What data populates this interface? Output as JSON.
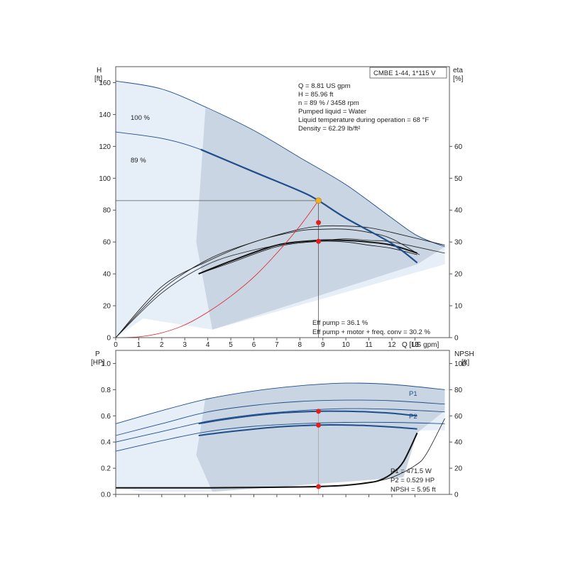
{
  "colors": {
    "band_dark": "#c9d5e2",
    "band_light": "#e6eef8",
    "curve": "#1f4e8c",
    "marker": "#e02020",
    "op_point": "#f0b020",
    "system_curve": "#e02020"
  },
  "chart_data": [
    {
      "type": "line",
      "panel": "head-efficiency",
      "title": "CMBE 1-44, 1*115 V",
      "y_axis_label": "H",
      "y_axis_unit": "[ft]",
      "y2_axis_label": "eta",
      "y2_axis_unit": "[%]",
      "x_axis_unit": "Q [US gpm]",
      "xlim": [
        0,
        14.5
      ],
      "ylim": [
        0,
        170
      ],
      "y2lim": [
        0,
        85
      ],
      "x_ticks": [
        "0",
        "1",
        "2",
        "3",
        "4",
        "5",
        "6",
        "7",
        "8",
        "9",
        "10",
        "11",
        "12",
        "13"
      ],
      "y_ticks": [
        "0",
        "20",
        "40",
        "60",
        "80",
        "100",
        "120",
        "140",
        "160"
      ],
      "y2_ticks": [
        "0",
        "10",
        "20",
        "30",
        "40",
        "50",
        "60"
      ],
      "info_lines": [
        "Q = 8.81 US gpm",
        "H = 85.96 ft",
        "n = 89 % / 3458 rpm",
        "Pumped liquid = Water",
        "Liquid temperature during operation = 68 °F",
        "Density = 62.29 lb/ft²"
      ],
      "eff_lines": [
        "Eff pump = 36.1 %",
        "Eff pump + motor + freq. conv = 30.2 %"
      ],
      "speed_labels": [
        "100 %",
        "89 %"
      ],
      "series": [
        {
          "name": "100 %",
          "axis": "H",
          "x": [
            0,
            2,
            4,
            6,
            8,
            10,
            12,
            13.1,
            14.3
          ],
          "values": [
            161,
            156,
            144,
            130,
            113,
            96,
            75,
            64,
            57
          ]
        },
        {
          "name": "89 %",
          "axis": "H",
          "x": [
            0,
            2,
            3.7,
            6,
            8,
            8.81,
            10,
            12,
            13.1
          ],
          "values": [
            129,
            125,
            118,
            104,
            92,
            85.96,
            75,
            59,
            47
          ]
        },
        {
          "axis": "eta",
          "x": [
            0,
            2,
            4,
            6,
            8,
            9,
            10,
            11,
            12,
            13.2
          ],
          "values": [
            0,
            16,
            24,
            30,
            33.5,
            34,
            34,
            33,
            31,
            26
          ]
        },
        {
          "axis": "eta",
          "x": [
            0,
            2,
            4,
            6,
            8,
            9,
            10,
            11,
            12,
            14.3
          ],
          "values": [
            0,
            15,
            24.5,
            30,
            34,
            35,
            35,
            34.5,
            33,
            29
          ]
        },
        {
          "axis": "eta",
          "x": [
            3.6,
            5,
            7,
            8.81,
            10,
            11,
            12,
            13.1
          ],
          "values": [
            20,
            23.5,
            28.5,
            30.2,
            30,
            29,
            28,
            26
          ]
        },
        {
          "axis": "eta",
          "x": [
            3.6,
            5,
            7,
            8.81,
            10,
            11,
            12,
            13.1
          ],
          "values": [
            20,
            24,
            29,
            30.5,
            30.5,
            30,
            29,
            26.5
          ]
        },
        {
          "axis": "eta",
          "x": [
            0,
            2,
            4,
            6,
            8,
            9,
            10,
            11,
            12,
            14.3
          ],
          "values": [
            0,
            14,
            23,
            27.5,
            30,
            30.5,
            31,
            30.5,
            30,
            26.5
          ]
        },
        {
          "name": "system",
          "axis": "H",
          "x": [
            0,
            1,
            2,
            3,
            4,
            5,
            6,
            7,
            8,
            8.81
          ],
          "values": [
            0,
            0.5,
            3,
            8,
            16,
            26,
            38,
            53,
            70,
            85.96
          ]
        }
      ],
      "operating_point": {
        "x": 8.81,
        "y": 85.96
      },
      "markers": [
        {
          "x": 8.81,
          "y": 72.2
        },
        {
          "x": 8.81,
          "y": 60.4
        }
      ]
    },
    {
      "type": "line",
      "panel": "power-npsh",
      "y_axis_label": "P",
      "y_axis_unit": "[HP]",
      "y2_axis_label": "NPSH",
      "y2_axis_unit": "[ft]",
      "xlim": [
        0,
        14.5
      ],
      "ylim": [
        0,
        1.1
      ],
      "y2lim": [
        0,
        110
      ],
      "y_ticks": [
        "0.0",
        "0.2",
        "0.4",
        "0.6",
        "0.8",
        "1.0"
      ],
      "y2_ticks": [
        "0",
        "20",
        "40",
        "60",
        "80",
        "100"
      ],
      "series_labels": [
        "P1",
        "P2"
      ],
      "readout_lines": [
        "P1 = 471.5 W",
        "P2 = 0.529 HP",
        "NPSH = 5.95 ft"
      ],
      "series": [
        {
          "name": "P1",
          "x": [
            0,
            2,
            4,
            6,
            8,
            10,
            12,
            14.3
          ],
          "values": [
            0.54,
            0.64,
            0.73,
            0.79,
            0.83,
            0.85,
            0.84,
            0.8
          ]
        },
        {
          "x": [
            0,
            2,
            4,
            6,
            8,
            10,
            12,
            14.3
          ],
          "values": [
            0.45,
            0.54,
            0.63,
            0.68,
            0.71,
            0.72,
            0.715,
            0.69
          ]
        },
        {
          "name": "P2",
          "x": [
            0,
            2,
            4,
            6,
            8,
            10,
            12,
            14.3
          ],
          "values": [
            0.4,
            0.48,
            0.56,
            0.61,
            0.64,
            0.655,
            0.65,
            0.63
          ]
        },
        {
          "x": [
            0,
            2,
            4,
            6,
            8,
            10,
            12,
            14.3
          ],
          "values": [
            0.33,
            0.41,
            0.48,
            0.52,
            0.54,
            0.55,
            0.55,
            0.54
          ]
        },
        {
          "x": [
            3.6,
            5,
            7,
            8.81,
            10,
            11,
            12,
            13.1
          ],
          "values": [
            0.54,
            0.58,
            0.62,
            0.635,
            0.635,
            0.63,
            0.62,
            0.6
          ]
        },
        {
          "x": [
            3.6,
            5,
            7,
            8.81,
            10,
            11,
            12,
            13.1
          ],
          "values": [
            0.45,
            0.48,
            0.515,
            0.53,
            0.53,
            0.525,
            0.515,
            0.5
          ]
        },
        {
          "axis": "NPSH",
          "x": [
            0,
            2,
            4,
            6,
            8,
            8.81,
            10,
            11,
            11.5,
            12,
            12.5,
            13.1
          ],
          "values": [
            5,
            5,
            5,
            5.3,
            5.7,
            5.95,
            7,
            9,
            11,
            16,
            25,
            47
          ]
        },
        {
          "axis": "NPSH",
          "x": [
            0,
            2,
            4,
            6,
            8,
            10,
            11,
            12,
            13,
            13.5,
            14.3
          ],
          "values": [
            5,
            5,
            5,
            5.5,
            6,
            7,
            9,
            13,
            22,
            31,
            58
          ]
        }
      ],
      "markers": [
        {
          "x": 8.81,
          "y": 0.635
        },
        {
          "x": 8.81,
          "y": 0.529
        },
        {
          "x": 8.81,
          "y2": 5.95
        }
      ]
    }
  ]
}
